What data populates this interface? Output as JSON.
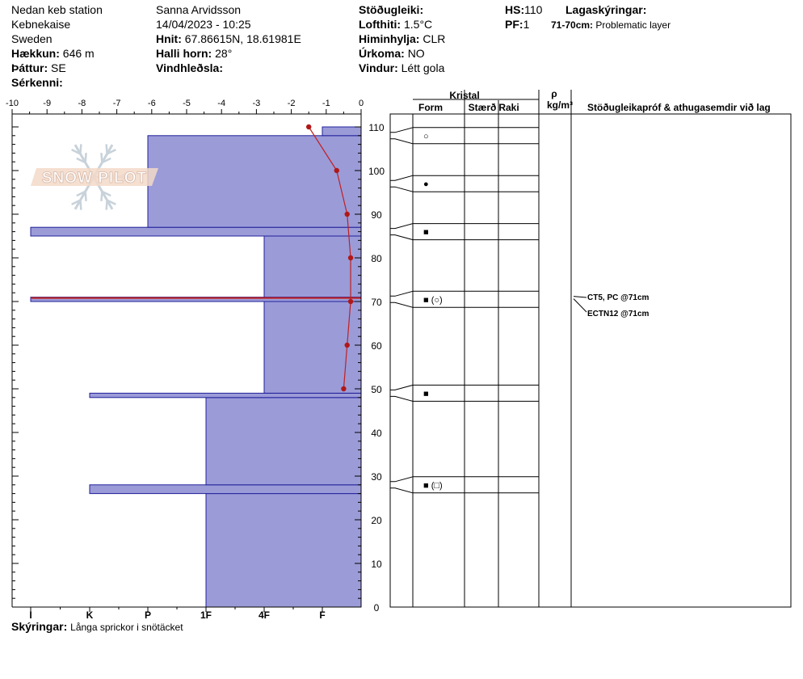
{
  "header": {
    "site": "Nedan keb station",
    "location": "Kebnekaise",
    "country": "Sweden",
    "elevation_label": "Hækkun:",
    "elevation": "646 m",
    "aspect_label": "Þáttur:",
    "aspect": "SE",
    "features_label": "Sérkenni:",
    "observer": "Sanna Arvidsson",
    "datetime": "14/04/2023 - 10:25",
    "coords_label": "Hnit:",
    "coords": "67.86615N, 18.61981E",
    "slope_label": "Halli horn:",
    "slope": "28°",
    "wind_loading_label": "Vindhleðsla:",
    "stability_label": "Stöðugleiki:",
    "air_temp_label": "Lofthiti:",
    "air_temp": "1.5°C",
    "sky_label": "Himinhylja:",
    "sky": "CLR",
    "precip_label": "Úrkoma:",
    "precip": "NO",
    "wind_label": "Vindur:",
    "wind": "Létt gola",
    "hs_label": "HS:",
    "hs": "110",
    "pf_label": "PF:",
    "pf": "1",
    "layer_notes_label": "Lagaskýringar:",
    "layer_note_range": "71-70cm:",
    "layer_note_text": "Problematic layer",
    "comments_label": "Skýringar:",
    "comments": "Långa sprickor i snötäcket"
  },
  "logo_text": "SNOW PILOT",
  "columns": {
    "crystal": "Kristal",
    "form": "Form",
    "size": "Stærð",
    "moisture": "Raki",
    "rho": "ρ",
    "density_unit": "kg/m³",
    "tests": "Stöðugleikapróf & athugasemdir við lag"
  },
  "stability_tests": [
    "CT5, PC @71cm",
    "ECTN12 @71cm"
  ],
  "chart_data": {
    "type": "snow-profile",
    "temperature_axis": {
      "ticks": [
        -10,
        -9,
        -8,
        -7,
        -6,
        -5,
        -4,
        -3,
        -2,
        -1,
        0
      ]
    },
    "height_axis": {
      "min": 0,
      "max": 110,
      "ticks": [
        0,
        10,
        20,
        30,
        40,
        50,
        60,
        70,
        80,
        90,
        100,
        110
      ]
    },
    "hardness_ticks": [
      "I",
      "K",
      "P",
      "1F",
      "4F",
      "F"
    ],
    "hardness_layers": [
      {
        "from": 0,
        "to": 26,
        "hardness": "1F"
      },
      {
        "from": 26,
        "to": 28,
        "hardness": "K"
      },
      {
        "from": 28,
        "to": 48,
        "hardness": "1F"
      },
      {
        "from": 48,
        "to": 49,
        "hardness": "K"
      },
      {
        "from": 49,
        "to": 70,
        "hardness": "4F"
      },
      {
        "from": 70,
        "to": 71,
        "hardness": "I"
      },
      {
        "from": 71,
        "to": 85,
        "hardness": "4F"
      },
      {
        "from": 85,
        "to": 87,
        "hardness": "I"
      },
      {
        "from": 87,
        "to": 108,
        "hardness": "P"
      },
      {
        "from": 108,
        "to": 110,
        "hardness": "F"
      }
    ],
    "temperature_profile": [
      {
        "height": 110,
        "temp": -1.5
      },
      {
        "height": 100,
        "temp": -0.7
      },
      {
        "height": 90,
        "temp": -0.4
      },
      {
        "height": 80,
        "temp": -0.3
      },
      {
        "height": 70,
        "temp": -0.3
      },
      {
        "height": 60,
        "temp": -0.4
      },
      {
        "height": 50,
        "temp": -0.5
      }
    ],
    "grain_markers": [
      {
        "height": 108,
        "form": "○"
      },
      {
        "height": 97,
        "form": "●"
      },
      {
        "height": 86,
        "form": "■"
      },
      {
        "height": 70.5,
        "form": "■ (○)"
      },
      {
        "height": 49,
        "form": "■"
      },
      {
        "height": 28,
        "form": "■ (□)"
      }
    ]
  }
}
